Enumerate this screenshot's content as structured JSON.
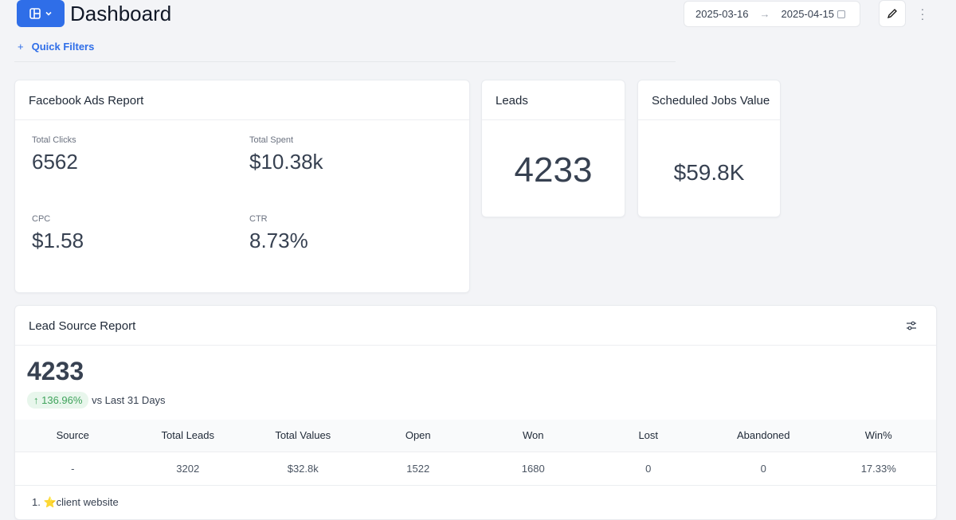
{
  "header": {
    "title": "Dashboard",
    "quick_filters": "Quick Filters",
    "plus": "+",
    "date_from": "2025-03-16",
    "date_arrow": "→",
    "date_to": "2025-04-15"
  },
  "facebook": {
    "title": "Facebook Ads Report",
    "metrics": [
      {
        "label": "Total Clicks",
        "value": "6562"
      },
      {
        "label": "Total Spent",
        "value": "$10.38k"
      },
      {
        "label": "CPC",
        "value": "$1.58"
      },
      {
        "label": "CTR",
        "value": "8.73%"
      }
    ]
  },
  "leads": {
    "title": "Leads",
    "value": "4233"
  },
  "scheduled": {
    "title": "Scheduled Jobs Value",
    "value": "$59.8K"
  },
  "lead_source": {
    "title": "Lead Source Report",
    "total": "4233",
    "change": "↑ 136.96%",
    "compare": "vs Last 31 Days",
    "columns": [
      "Source",
      "Total Leads",
      "Total Values",
      "Open",
      "Won",
      "Lost",
      "Abandoned",
      "Win%"
    ],
    "rows": [
      [
        "-",
        "3202",
        "$32.8k",
        "1522",
        "1680",
        "0",
        "0",
        "17.33%"
      ]
    ],
    "sub_item": "1. ⭐client website"
  }
}
